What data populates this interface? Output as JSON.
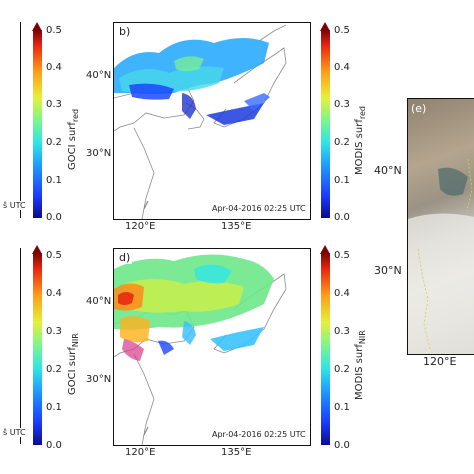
{
  "colorbar": {
    "ticks": [
      "0.0",
      "0.1",
      "0.2",
      "0.3",
      "0.4",
      "0.5"
    ],
    "label_goci_red": "GOCI surf",
    "label_goci_red_sub": "red",
    "label_modis_red": "MODIS surf",
    "label_modis_red_sub": "red",
    "label_goci_nir": "GOCI surf",
    "label_goci_nir_sub": "NIR",
    "label_modis_nir": "MODIS surf",
    "label_modis_nir_sub": "NIR"
  },
  "panels": {
    "b": {
      "tag": "b)",
      "stamp": "Apr-04-2016 02:25 UTC"
    },
    "d": {
      "tag": "d)",
      "stamp": "Apr-04-2016 02:25 UTC"
    },
    "e": {
      "tag": "(e)"
    }
  },
  "partial_stamp": "UTC",
  "lat_labels": {
    "n40": "40°N",
    "n30": "30°N"
  },
  "lon_labels": {
    "e120": "120°E",
    "e135": "135°E"
  },
  "colors": {
    "frame": "#111111",
    "coast": "#8a8a8a"
  }
}
